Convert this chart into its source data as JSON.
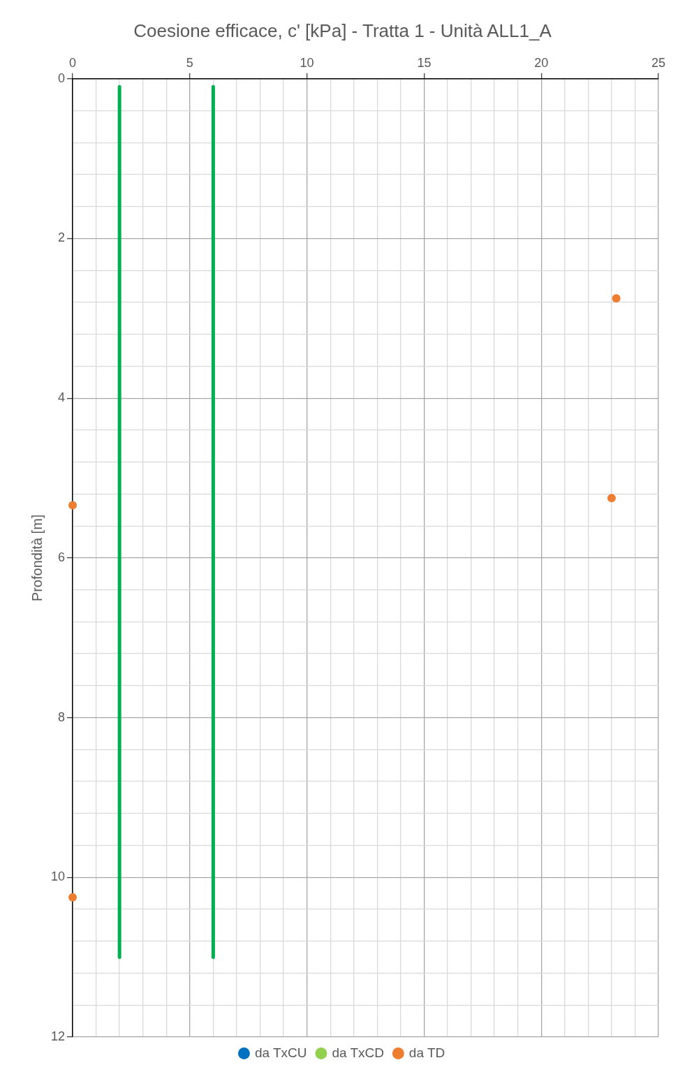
{
  "chart_data": {
    "type": "scatter",
    "title": "Coesione efficace, c' [kPa] - Tratta 1 - Unità ALL1_A",
    "ylabel": "Profondità [m]",
    "xlim": [
      0,
      25
    ],
    "ylim": [
      12,
      0
    ],
    "xticks": [
      0,
      {
        "value": 1,
        "label": null
      },
      {
        "value": 2,
        "label": null
      },
      {
        "value": 3,
        "label": null
      },
      {
        "value": 4,
        "label": null
      },
      5,
      {
        "value": 6,
        "label": null
      },
      {
        "value": 7,
        "label": null
      },
      {
        "value": 8,
        "label": null
      },
      {
        "value": 9,
        "label": null
      },
      10,
      {
        "value": 11,
        "label": null
      },
      {
        "value": 12,
        "label": null
      },
      {
        "value": 13,
        "label": null
      },
      {
        "value": 14,
        "label": null
      },
      15,
      {
        "value": 16,
        "label": null
      },
      {
        "value": 17,
        "label": null
      },
      {
        "value": 18,
        "label": null
      },
      {
        "value": 19,
        "label": null
      },
      20,
      {
        "value": 21,
        "label": null
      },
      {
        "value": 22,
        "label": null
      },
      {
        "value": 23,
        "label": null
      },
      {
        "value": 24,
        "label": null
      },
      25
    ],
    "yticks": [
      0,
      {
        "value": 0.4,
        "label": null
      },
      {
        "value": 0.8,
        "label": null
      },
      {
        "value": 1.2,
        "label": null
      },
      {
        "value": 1.6,
        "label": null
      },
      2,
      {
        "value": 2.4,
        "label": null
      },
      {
        "value": 2.8,
        "label": null
      },
      {
        "value": 3.2,
        "label": null
      },
      {
        "value": 3.6,
        "label": null
      },
      4,
      {
        "value": 4.4,
        "label": null
      },
      {
        "value": 4.8,
        "label": null
      },
      {
        "value": 5.2,
        "label": null
      },
      {
        "value": 5.6,
        "label": null
      },
      6,
      {
        "value": 6.4,
        "label": null
      },
      {
        "value": 6.8,
        "label": null
      },
      {
        "value": 7.2,
        "label": null
      },
      {
        "value": 7.6,
        "label": null
      },
      8,
      {
        "value": 8.4,
        "label": null
      },
      {
        "value": 8.8,
        "label": null
      },
      {
        "value": 9.2,
        "label": null
      },
      {
        "value": 9.6,
        "label": null
      },
      10,
      {
        "value": 10.4,
        "label": null
      },
      {
        "value": 10.8,
        "label": null
      },
      {
        "value": 11.2,
        "label": null
      },
      {
        "value": 11.6,
        "label": null
      },
      12
    ],
    "grid": true,
    "legend": "bottom",
    "marker": "circle",
    "series": [
      {
        "name": "da TxCU",
        "color": "#0070c0"
      },
      {
        "name": "da TxCD",
        "color": "#92d050"
      },
      {
        "name": "da TD",
        "color": "#ed7d31",
        "x": [
          23.2,
          23.0,
          0,
          0
        ],
        "values": [
          2.75,
          5.25,
          5.34,
          10.25
        ]
      },
      {
        "type": "line",
        "marker": "none",
        "color": "#00b050",
        "x": [
          2,
          2
        ],
        "values": [
          0.1,
          11
        ]
      },
      {
        "type": "line",
        "marker": "none",
        "color": "#00b050",
        "x": [
          6,
          6
        ],
        "values": [
          0.1,
          11
        ]
      }
    ]
  }
}
